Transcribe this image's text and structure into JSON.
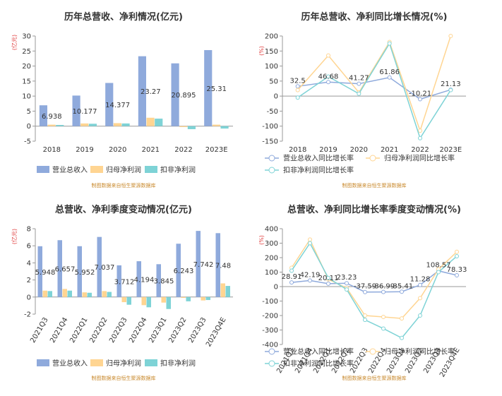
{
  "colors": {
    "revenue": "#8faadc",
    "net_profit": "#ffd592",
    "deducted_profit": "#7ed3d6",
    "source_text": "#c98a2e",
    "unit_text": "#e03c3c"
  },
  "chart_data": [
    {
      "id": "annual-values",
      "type": "bar",
      "title": "历年总营收、净利情况(亿元)",
      "unit_label": "(亿元)",
      "categories": [
        "2018",
        "2019",
        "2020",
        "2021",
        "2022",
        "2023E"
      ],
      "ylim": [
        -5,
        30
      ],
      "yticks": [
        -5,
        0,
        5,
        10,
        15,
        20,
        25,
        30
      ],
      "grid": false,
      "legend_position": "bottom",
      "series": [
        {
          "name": "营业总收入",
          "values": [
            6.938,
            10.177,
            14.377,
            23.27,
            20.895,
            25.31
          ],
          "labels": [
            "6.938",
            "10.177",
            "14.377",
            "23.27",
            "20.895",
            "25.31"
          ]
        },
        {
          "name": "归母净利润",
          "values": [
            0.5,
            0.9,
            1.0,
            2.8,
            -0.3,
            0.5
          ]
        },
        {
          "name": "扣非净利润",
          "values": [
            0.4,
            0.8,
            0.9,
            2.5,
            -1.0,
            -0.8
          ]
        }
      ],
      "source": "制图数据来自恒生聚源数据库"
    },
    {
      "id": "annual-growth",
      "type": "line",
      "title": "历年总营收、净利同比增长情况(%)",
      "unit_label": "(%)",
      "categories": [
        "2018",
        "2019",
        "2020",
        "2021",
        "2022",
        "2023E"
      ],
      "ylim": [
        -150,
        200
      ],
      "yticks": [
        -150,
        -100,
        -50,
        0,
        50,
        100,
        150,
        200
      ],
      "grid": false,
      "legend_position": "bottom",
      "series": [
        {
          "name": "营业总收入同比增长率",
          "values": [
            32.5,
            46.68,
            41.27,
            61.86,
            -10.21,
            21.13
          ],
          "labels": [
            "32.5",
            "46.68",
            "41.27",
            "61.86",
            "-10.21",
            "21.13"
          ]
        },
        {
          "name": "归母净利润同比增长率",
          "values": [
            20,
            135,
            12,
            180,
            -115,
            200
          ]
        },
        {
          "name": "扣非净利润同比增长率",
          "values": [
            -5,
            65,
            8,
            175,
            -140,
            20
          ]
        }
      ],
      "source": "制图数据来自恒生聚源数据库"
    },
    {
      "id": "quarterly-values",
      "type": "bar",
      "title": "总营收、净利季度变动情况(亿元)",
      "unit_label": "(亿元)",
      "categories": [
        "2021Q3",
        "2021Q4",
        "2022Q1",
        "2022Q2",
        "2022Q3",
        "2022Q4",
        "2023Q1",
        "2023Q2",
        "2023Q3",
        "2023Q4E"
      ],
      "ylim": [
        -2,
        8
      ],
      "yticks": [
        -2,
        0,
        2,
        4,
        6,
        8
      ],
      "grid": false,
      "legend_position": "bottom",
      "series": [
        {
          "name": "营业总收入",
          "values": [
            5.948,
            6.657,
            5.952,
            7.037,
            3.712,
            4.194,
            3.845,
            6.243,
            7.742,
            7.48
          ],
          "labels": [
            "5.948",
            "6.657",
            "5.952",
            "7.037",
            "3.712",
            "4.194",
            "3.845",
            "6.243",
            "7.742",
            "7.48"
          ]
        },
        {
          "name": "归母净利润",
          "values": [
            0.75,
            0.95,
            0.55,
            0.7,
            -0.6,
            -0.95,
            -0.65,
            -0.1,
            -0.4,
            1.6
          ]
        },
        {
          "name": "扣非净利润",
          "values": [
            0.7,
            0.75,
            0.5,
            0.6,
            -0.9,
            -1.2,
            -1.4,
            -0.5,
            -0.35,
            1.3
          ]
        }
      ],
      "source": "制图数据来自恒生聚源数据库"
    },
    {
      "id": "quarterly-growth",
      "type": "line",
      "title": "总营收、净利同比增长率季度变动情况(%)",
      "unit_label": "(%)",
      "categories": [
        "2021Q3",
        "2021Q4",
        "2022Q1",
        "2022Q2",
        "2022Q3",
        "2022Q4",
        "2023Q1",
        "2023Q2",
        "2023Q3",
        "2023Q4E"
      ],
      "ylim": [
        -400,
        400
      ],
      "yticks": [
        -400,
        -300,
        -200,
        -100,
        0,
        100,
        200,
        300,
        400
      ],
      "grid": false,
      "legend_position": "bottom",
      "series": [
        {
          "name": "营业总收入同比增长率",
          "values": [
            28.91,
            42.19,
            20.11,
            23.23,
            -37.59,
            -36.99,
            -35.41,
            11.28,
            108.57,
            78.33
          ],
          "labels": [
            "28.91",
            "42.19",
            "20.11",
            "23.23",
            "-37.59",
            "-36.99",
            "-35.41",
            "11.28",
            "108.57",
            "78.33"
          ]
        },
        {
          "name": "归母净利润同比增长率",
          "values": [
            130,
            325,
            50,
            -10,
            -200,
            -210,
            -220,
            -80,
            120,
            240
          ]
        },
        {
          "name": "扣非净利润同比增长率",
          "values": [
            110,
            300,
            60,
            -20,
            -230,
            -290,
            -355,
            -200,
            100,
            210
          ]
        }
      ],
      "source": "制图数据来自恒生聚源数据库"
    }
  ]
}
